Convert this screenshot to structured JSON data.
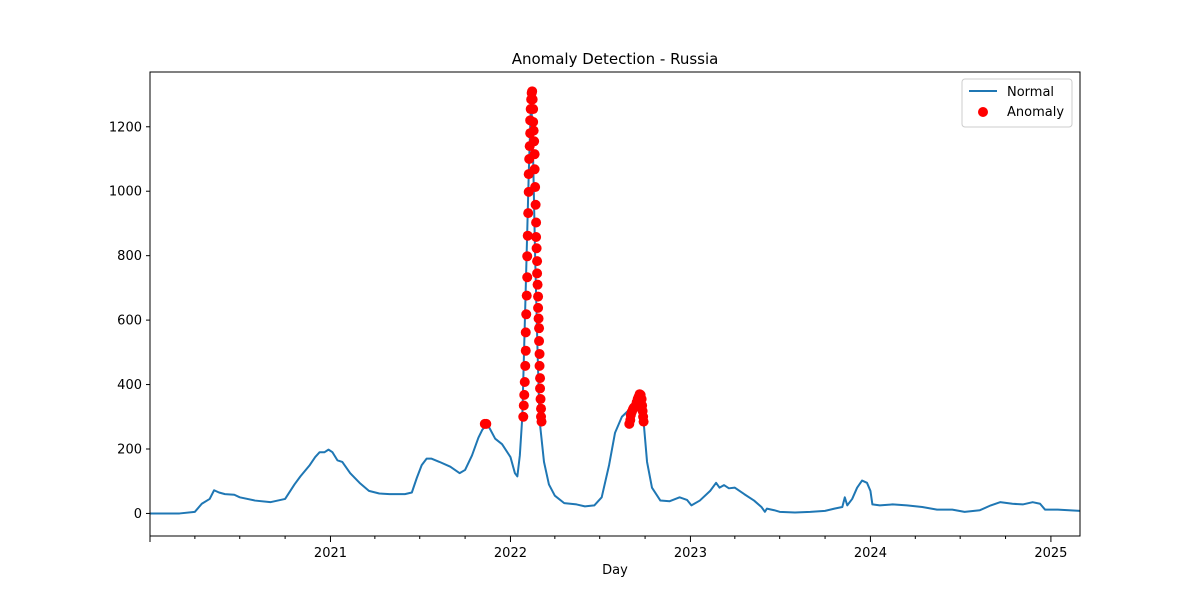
{
  "chart_data": {
    "type": "line",
    "title": "Anomaly Detection - Russia",
    "xlabel": "Day",
    "ylabel": "",
    "xlim": [
      "2020-01-01",
      "2025-03-01"
    ],
    "ylim": [
      -70,
      1370
    ],
    "x_ticks": [
      "2021",
      "2022",
      "2023",
      "2024",
      "2025"
    ],
    "y_ticks": [
      0,
      200,
      400,
      600,
      800,
      1000,
      1200
    ],
    "grid": false,
    "legend": {
      "placement": "top-right",
      "entries": [
        {
          "name": "Normal",
          "kind": "line",
          "color": "#1f77b4"
        },
        {
          "name": "Anomaly",
          "kind": "marker",
          "color": "#ff0000"
        }
      ]
    },
    "series": [
      {
        "name": "Normal",
        "kind": "line",
        "color": "#1f77b4",
        "points": [
          [
            "2020-01-01",
            0
          ],
          [
            "2020-03-01",
            0
          ],
          [
            "2020-04-01",
            5
          ],
          [
            "2020-04-15",
            30
          ],
          [
            "2020-05-01",
            45
          ],
          [
            "2020-05-10",
            72
          ],
          [
            "2020-05-20",
            65
          ],
          [
            "2020-06-01",
            60
          ],
          [
            "2020-06-20",
            58
          ],
          [
            "2020-07-01",
            50
          ],
          [
            "2020-08-01",
            40
          ],
          [
            "2020-09-01",
            35
          ],
          [
            "2020-10-01",
            45
          ],
          [
            "2020-10-20",
            90
          ],
          [
            "2020-11-01",
            115
          ],
          [
            "2020-11-20",
            150
          ],
          [
            "2020-12-01",
            175
          ],
          [
            "2020-12-10",
            190
          ],
          [
            "2020-12-20",
            190
          ],
          [
            "2020-12-28",
            198
          ],
          [
            "2021-01-05",
            190
          ],
          [
            "2021-01-15",
            165
          ],
          [
            "2021-01-25",
            160
          ],
          [
            "2021-02-10",
            125
          ],
          [
            "2021-03-01",
            95
          ],
          [
            "2021-03-20",
            70
          ],
          [
            "2021-04-10",
            62
          ],
          [
            "2021-05-01",
            60
          ],
          [
            "2021-06-01",
            60
          ],
          [
            "2021-06-15",
            65
          ],
          [
            "2021-06-25",
            110
          ],
          [
            "2021-07-05",
            150
          ],
          [
            "2021-07-15",
            170
          ],
          [
            "2021-07-25",
            170
          ],
          [
            "2021-08-10",
            160
          ],
          [
            "2021-09-01",
            145
          ],
          [
            "2021-09-20",
            125
          ],
          [
            "2021-10-01",
            135
          ],
          [
            "2021-10-15",
            180
          ],
          [
            "2021-10-28",
            235
          ],
          [
            "2021-11-05",
            260
          ],
          [
            "2021-11-15",
            278
          ],
          [
            "2021-12-01",
            232
          ],
          [
            "2021-12-15",
            215
          ],
          [
            "2022-01-01",
            175
          ],
          [
            "2022-01-10",
            125
          ],
          [
            "2022-01-15",
            115
          ],
          [
            "2022-01-20",
            180
          ],
          [
            "2022-01-25",
            300
          ],
          [
            "2022-02-01",
            700
          ],
          [
            "2022-02-07",
            1050
          ],
          [
            "2022-02-12",
            1300
          ],
          [
            "2022-02-16",
            1100
          ],
          [
            "2022-02-20",
            800
          ],
          [
            "2022-02-25",
            500
          ],
          [
            "2022-03-01",
            290
          ],
          [
            "2022-03-10",
            160
          ],
          [
            "2022-03-20",
            90
          ],
          [
            "2022-04-01",
            55
          ],
          [
            "2022-04-20",
            32
          ],
          [
            "2022-05-15",
            28
          ],
          [
            "2022-06-01",
            22
          ],
          [
            "2022-06-20",
            25
          ],
          [
            "2022-07-05",
            50
          ],
          [
            "2022-07-20",
            150
          ],
          [
            "2022-08-01",
            250
          ],
          [
            "2022-08-15",
            300
          ],
          [
            "2022-09-01",
            325
          ],
          [
            "2022-09-15",
            355
          ],
          [
            "2022-09-20",
            370
          ],
          [
            "2022-09-28",
            285
          ],
          [
            "2022-10-05",
            160
          ],
          [
            "2022-10-15",
            80
          ],
          [
            "2022-11-01",
            40
          ],
          [
            "2022-11-20",
            38
          ],
          [
            "2022-12-10",
            50
          ],
          [
            "2022-12-25",
            42
          ],
          [
            "2023-01-03",
            25
          ],
          [
            "2023-01-20",
            40
          ],
          [
            "2023-02-10",
            70
          ],
          [
            "2023-02-22",
            95
          ],
          [
            "2023-03-01",
            80
          ],
          [
            "2023-03-10",
            88
          ],
          [
            "2023-03-20",
            78
          ],
          [
            "2023-04-01",
            80
          ],
          [
            "2023-04-20",
            60
          ],
          [
            "2023-05-10",
            40
          ],
          [
            "2023-05-25",
            20
          ],
          [
            "2023-06-01",
            5
          ],
          [
            "2023-06-05",
            15
          ],
          [
            "2023-06-20",
            10
          ],
          [
            "2023-07-01",
            5
          ],
          [
            "2023-08-01",
            3
          ],
          [
            "2023-09-01",
            5
          ],
          [
            "2023-10-01",
            8
          ],
          [
            "2023-10-20",
            15
          ],
          [
            "2023-11-05",
            20
          ],
          [
            "2023-11-10",
            50
          ],
          [
            "2023-11-15",
            25
          ],
          [
            "2023-11-25",
            45
          ],
          [
            "2023-12-05",
            80
          ],
          [
            "2023-12-15",
            102
          ],
          [
            "2023-12-25",
            95
          ],
          [
            "2024-01-01",
            70
          ],
          [
            "2024-01-05",
            28
          ],
          [
            "2024-01-20",
            25
          ],
          [
            "2024-02-15",
            28
          ],
          [
            "2024-03-15",
            25
          ],
          [
            "2024-04-15",
            20
          ],
          [
            "2024-05-15",
            12
          ],
          [
            "2024-06-15",
            12
          ],
          [
            "2024-07-10",
            5
          ],
          [
            "2024-08-10",
            10
          ],
          [
            "2024-09-01",
            25
          ],
          [
            "2024-09-20",
            35
          ],
          [
            "2024-10-15",
            30
          ],
          [
            "2024-11-05",
            28
          ],
          [
            "2024-11-25",
            35
          ],
          [
            "2024-12-10",
            30
          ],
          [
            "2024-12-20",
            12
          ],
          [
            "2025-01-15",
            12
          ],
          [
            "2025-03-01",
            8
          ]
        ]
      },
      {
        "name": "Anomaly",
        "kind": "scatter",
        "color": "#ff0000",
        "points": [
          [
            "2021-11-10",
            278
          ],
          [
            "2021-11-13",
            278
          ],
          [
            "2022-01-27",
            300
          ],
          [
            "2022-01-28",
            335
          ],
          [
            "2022-01-29",
            368
          ],
          [
            "2022-01-30",
            408
          ],
          [
            "2022-01-31",
            458
          ],
          [
            "2022-02-01",
            505
          ],
          [
            "2022-02-01",
            562
          ],
          [
            "2022-02-02",
            618
          ],
          [
            "2022-02-03",
            676
          ],
          [
            "2022-02-04",
            733
          ],
          [
            "2022-02-04",
            798
          ],
          [
            "2022-02-05",
            862
          ],
          [
            "2022-02-06",
            932
          ],
          [
            "2022-02-07",
            998
          ],
          [
            "2022-02-07",
            1053
          ],
          [
            "2022-02-08",
            1100
          ],
          [
            "2022-02-09",
            1140
          ],
          [
            "2022-02-10",
            1180
          ],
          [
            "2022-02-10",
            1220
          ],
          [
            "2022-02-11",
            1255
          ],
          [
            "2022-02-12",
            1285
          ],
          [
            "2022-02-13",
            1305
          ],
          [
            "2022-02-14",
            1310
          ],
          [
            "2022-02-15",
            1285
          ],
          [
            "2022-02-16",
            1255
          ],
          [
            "2022-02-16",
            1215
          ],
          [
            "2022-02-17",
            1188
          ],
          [
            "2022-02-18",
            1155
          ],
          [
            "2022-02-19",
            1115
          ],
          [
            "2022-02-19",
            1068
          ],
          [
            "2022-02-20",
            1013
          ],
          [
            "2022-02-21",
            958
          ],
          [
            "2022-02-22",
            903
          ],
          [
            "2022-02-22",
            858
          ],
          [
            "2022-02-23",
            823
          ],
          [
            "2022-02-24",
            783
          ],
          [
            "2022-02-24",
            745
          ],
          [
            "2022-02-25",
            710
          ],
          [
            "2022-02-26",
            673
          ],
          [
            "2022-02-26",
            638
          ],
          [
            "2022-02-27",
            605
          ],
          [
            "2022-02-28",
            575
          ],
          [
            "2022-02-28",
            535
          ],
          [
            "2022-03-01",
            495
          ],
          [
            "2022-03-01",
            458
          ],
          [
            "2022-03-02",
            420
          ],
          [
            "2022-03-02",
            388
          ],
          [
            "2022-03-03",
            355
          ],
          [
            "2022-03-04",
            325
          ],
          [
            "2022-03-04",
            300
          ],
          [
            "2022-03-05",
            285
          ],
          [
            "2022-08-30",
            278
          ],
          [
            "2022-09-01",
            290
          ],
          [
            "2022-09-02",
            305
          ],
          [
            "2022-09-04",
            315
          ],
          [
            "2022-09-06",
            322
          ],
          [
            "2022-09-08",
            328
          ],
          [
            "2022-09-10",
            330
          ],
          [
            "2022-09-12",
            335
          ],
          [
            "2022-09-14",
            345
          ],
          [
            "2022-09-16",
            355
          ],
          [
            "2022-09-18",
            362
          ],
          [
            "2022-09-20",
            370
          ],
          [
            "2022-09-22",
            368
          ],
          [
            "2022-09-24",
            355
          ],
          [
            "2022-09-25",
            335
          ],
          [
            "2022-09-26",
            318
          ],
          [
            "2022-09-27",
            300
          ],
          [
            "2022-09-28",
            285
          ]
        ]
      }
    ]
  }
}
